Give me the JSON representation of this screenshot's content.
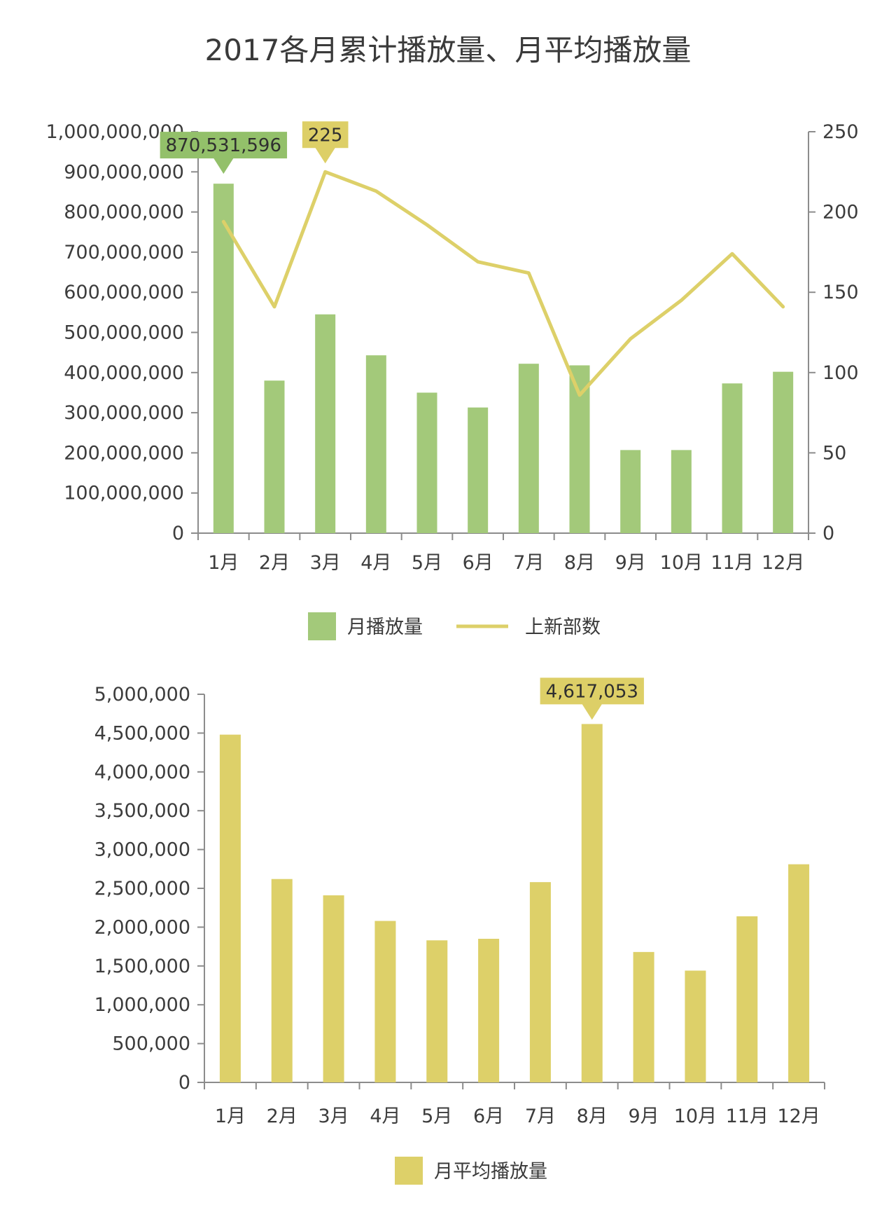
{
  "title": "2017各月累计播放量、月平均播放量",
  "colors": {
    "bar_green": "#a3c97a",
    "line_yellow": "#ddd069",
    "bar_yellow": "#ddd069",
    "ann_green": "#93c06a",
    "ann_yellow": "#ddcf67",
    "axis": "#8c8c8c"
  },
  "chart_data": [
    {
      "type": "bar",
      "categories": [
        "1月",
        "2月",
        "3月",
        "4月",
        "5月",
        "6月",
        "7月",
        "8月",
        "9月",
        "10月",
        "11月",
        "12月"
      ],
      "series": [
        {
          "name": "月播放量",
          "type": "bar",
          "axis": "left",
          "values": [
            870531596,
            380000000,
            545000000,
            443000000,
            350000000,
            313000000,
            422000000,
            418000000,
            207000000,
            207000000,
            373000000,
            402000000
          ]
        },
        {
          "name": "上新部数",
          "type": "line",
          "axis": "right",
          "values": [
            194,
            141,
            225,
            213,
            192,
            169,
            162,
            86,
            121,
            145,
            174,
            141
          ]
        }
      ],
      "ylim_left": [
        0,
        1000000000
      ],
      "ylim_right": [
        0,
        250
      ],
      "yticks_left": [
        "0",
        "100,000,000",
        "200,000,000",
        "300,000,000",
        "400,000,000",
        "500,000,000",
        "600,000,000",
        "700,000,000",
        "800,000,000",
        "900,000,000",
        "1,000,000,000"
      ],
      "yticks_right": [
        "0",
        "50",
        "100",
        "150",
        "200",
        "250"
      ],
      "annotations": [
        {
          "text": "870,531,596",
          "series": 0,
          "index": 0
        },
        {
          "text": "225",
          "series": 1,
          "index": 2
        }
      ],
      "legend_position": "bottom"
    },
    {
      "type": "bar",
      "categories": [
        "1月",
        "2月",
        "3月",
        "4月",
        "5月",
        "6月",
        "7月",
        "8月",
        "9月",
        "10月",
        "11月",
        "12月"
      ],
      "series": [
        {
          "name": "月平均播放量",
          "values": [
            4480000,
            2620000,
            2410000,
            2080000,
            1830000,
            1850000,
            2580000,
            4617053,
            1680000,
            1440000,
            2140000,
            2810000
          ]
        }
      ],
      "ylim": [
        0,
        5000000
      ],
      "yticks": [
        "0",
        "500,000",
        "1,000,000",
        "1,500,000",
        "2,000,000",
        "2,500,000",
        "3,000,000",
        "3,500,000",
        "4,000,000",
        "4,500,000",
        "5,000,000"
      ],
      "annotations": [
        {
          "text": "4,617,053",
          "series": 0,
          "index": 7
        }
      ],
      "legend_position": "bottom"
    }
  ]
}
